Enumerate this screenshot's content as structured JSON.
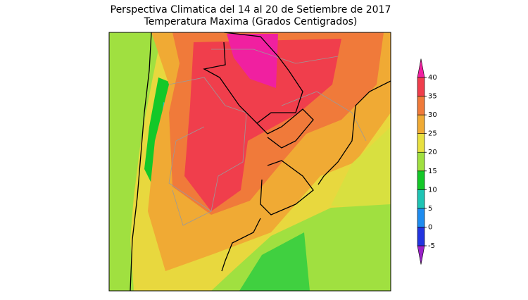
{
  "title": "Perspectiva Climatica del 14 al 20 de Setiembre de 2017",
  "subtitle": "Temperatura Maxima (Grados Centigrados)",
  "colorbar": {
    "ticks": [
      -5,
      0,
      5,
      10,
      15,
      20,
      25,
      30,
      35,
      40
    ],
    "colors": [
      "#9a22c8",
      "#2234e0",
      "#1e8cf0",
      "#1ec4b4",
      "#14c828",
      "#a0e040",
      "#e8e040",
      "#f0aa34",
      "#f07a3a",
      "#f03e4c",
      "#f020a0"
    ]
  }
}
